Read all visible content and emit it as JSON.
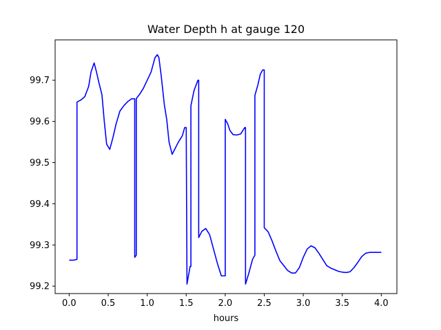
{
  "chart_data": {
    "type": "line",
    "title": "Water Depth h at gauge 120",
    "xlabel": "hours",
    "ylabel": "",
    "xlim": [
      -0.18,
      4.2
    ],
    "ylim": [
      99.182,
      99.798
    ],
    "xticks": [
      0.0,
      0.5,
      1.0,
      1.5,
      2.0,
      2.5,
      3.0,
      3.5,
      4.0
    ],
    "xtick_labels": [
      "0.0",
      "0.5",
      "1.0",
      "1.5",
      "2.0",
      "2.5",
      "3.0",
      "3.5",
      "4.0"
    ],
    "yticks": [
      99.2,
      99.3,
      99.4,
      99.5,
      99.6,
      99.7
    ],
    "ytick_labels": [
      "99.2",
      "99.3",
      "99.4",
      "99.5",
      "99.6",
      "99.7"
    ],
    "grid": false,
    "legend": "none",
    "series": [
      {
        "color": "#0000ff",
        "x": [
          0.0,
          0.05,
          0.1,
          0.1,
          0.15,
          0.2,
          0.25,
          0.28,
          0.32,
          0.35,
          0.38,
          0.42,
          0.45,
          0.48,
          0.52,
          0.56,
          0.6,
          0.65,
          0.7,
          0.75,
          0.8,
          0.84,
          0.84,
          0.86,
          0.86,
          0.87,
          0.87,
          0.9,
          0.95,
          1.0,
          1.05,
          1.1,
          1.13,
          1.15,
          1.18,
          1.22,
          1.25,
          1.28,
          1.32,
          1.36,
          1.4,
          1.45,
          1.48,
          1.5,
          1.51,
          1.51,
          1.55,
          1.56,
          1.56,
          1.6,
          1.65,
          1.66,
          1.66,
          1.7,
          1.75,
          1.8,
          1.85,
          1.9,
          1.95,
          2.0,
          2.0,
          2.03,
          2.06,
          2.1,
          2.15,
          2.2,
          2.25,
          2.26,
          2.26,
          2.3,
          2.35,
          2.38,
          2.38,
          2.42,
          2.45,
          2.48,
          2.5,
          2.5,
          2.55,
          2.6,
          2.65,
          2.7,
          2.75,
          2.8,
          2.85,
          2.9,
          2.95,
          3.0,
          3.05,
          3.1,
          3.15,
          3.2,
          3.25,
          3.3,
          3.35,
          3.4,
          3.45,
          3.5,
          3.55,
          3.6,
          3.65,
          3.7,
          3.75,
          3.8,
          3.85,
          3.9,
          3.95,
          4.0
        ],
        "y": [
          99.263,
          99.263,
          99.265,
          99.647,
          99.652,
          99.66,
          99.685,
          99.72,
          99.742,
          99.72,
          99.695,
          99.665,
          99.6,
          99.545,
          99.532,
          99.56,
          99.593,
          99.625,
          99.638,
          99.648,
          99.655,
          99.655,
          99.27,
          99.275,
          99.655,
          99.658,
          99.658,
          99.665,
          99.68,
          99.7,
          99.72,
          99.755,
          99.762,
          99.755,
          99.71,
          99.64,
          99.605,
          99.55,
          99.52,
          99.535,
          99.55,
          99.565,
          99.585,
          99.585,
          99.205,
          99.205,
          99.248,
          99.248,
          99.638,
          99.675,
          99.7,
          99.7,
          99.318,
          99.333,
          99.34,
          99.325,
          99.29,
          99.255,
          99.225,
          99.225,
          99.605,
          99.595,
          99.578,
          99.568,
          99.567,
          99.57,
          99.585,
          99.585,
          99.205,
          99.23,
          99.265,
          99.275,
          99.663,
          99.69,
          99.715,
          99.725,
          99.725,
          99.342,
          99.332,
          99.31,
          99.285,
          99.262,
          99.25,
          99.238,
          99.232,
          99.232,
          99.245,
          99.27,
          99.29,
          99.298,
          99.293,
          99.28,
          99.265,
          99.25,
          99.244,
          99.24,
          99.236,
          99.234,
          99.233,
          99.235,
          99.245,
          99.258,
          99.272,
          99.28,
          99.282,
          99.282,
          99.282,
          99.282
        ]
      }
    ]
  }
}
